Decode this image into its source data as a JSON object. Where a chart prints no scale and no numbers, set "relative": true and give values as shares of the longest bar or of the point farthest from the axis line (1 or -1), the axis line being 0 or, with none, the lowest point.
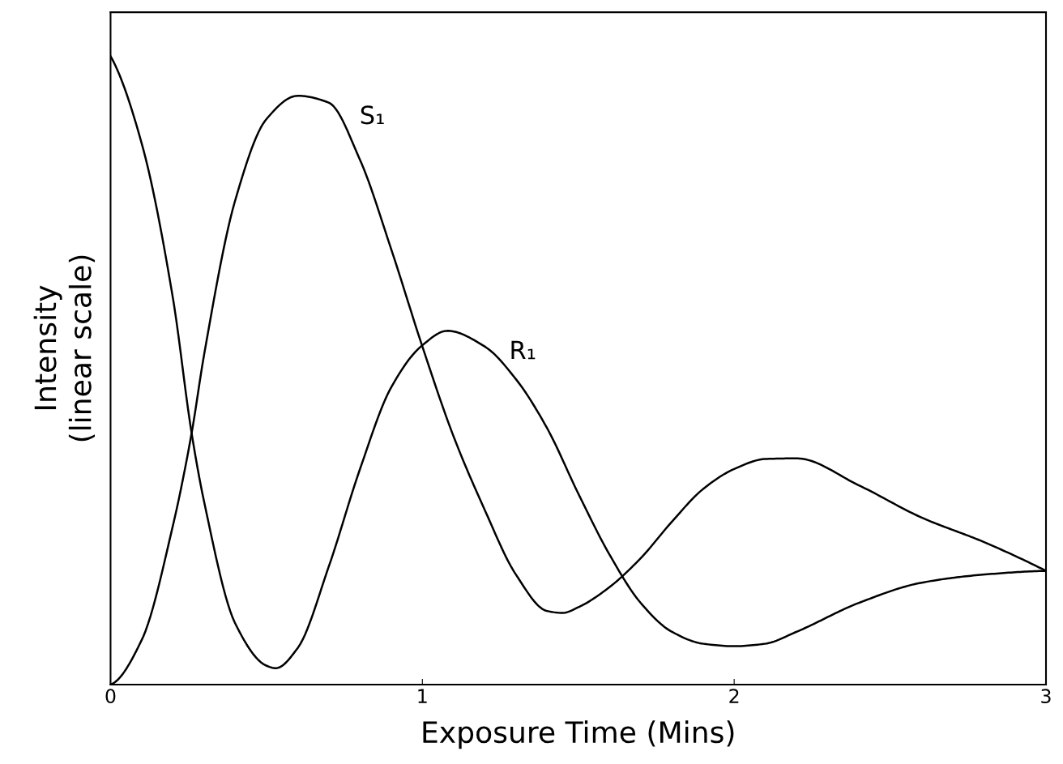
{
  "chart_data": {
    "type": "line",
    "relative": true,
    "xlabel": "Exposure Time (Mins)",
    "ylabel": "Intensity\n(linear scale)",
    "xlim": [
      0,
      3
    ],
    "xticks": [
      0,
      1,
      2,
      3
    ],
    "grid": false,
    "legend": false,
    "marker": "none",
    "line_style": "solid",
    "series": [
      {
        "name": "S₁",
        "color": "#000000",
        "x": [
          0,
          0.1,
          0.2,
          0.26,
          0.3,
          0.4,
          0.5,
          0.6,
          0.7,
          0.8,
          0.9,
          1.0,
          1.1,
          1.2,
          1.3,
          1.4,
          1.45,
          1.5,
          1.6,
          1.7,
          1.8,
          1.9,
          2.0,
          2.1,
          2.2,
          2.4,
          2.6,
          2.8,
          3.0
        ],
        "values": [
          0,
          0.071,
          0.253,
          0.4,
          0.525,
          0.771,
          0.9,
          0.937,
          0.926,
          0.835,
          0.693,
          0.538,
          0.395,
          0.278,
          0.175,
          0.117,
          0.114,
          0.123,
          0.155,
          0.201,
          0.259,
          0.311,
          0.343,
          0.359,
          0.36,
          0.317,
          0.266,
          0.227,
          0.181
        ]
      },
      {
        "name": "R₁",
        "color": "#000000",
        "x": [
          0,
          0.1,
          0.2,
          0.26,
          0.3,
          0.4,
          0.5,
          0.53,
          0.6,
          0.7,
          0.8,
          0.9,
          1.0,
          1.08,
          1.2,
          1.3,
          1.4,
          1.5,
          1.6,
          1.7,
          1.8,
          1.9,
          2.0,
          2.1,
          2.2,
          2.4,
          2.6,
          2.8,
          3.0
        ],
        "values": [
          1.0,
          0.861,
          0.615,
          0.4,
          0.291,
          0.097,
          0.03,
          0.026,
          0.058,
          0.188,
          0.343,
          0.473,
          0.54,
          0.563,
          0.538,
          0.486,
          0.408,
          0.304,
          0.207,
          0.13,
          0.084,
          0.065,
          0.061,
          0.065,
          0.084,
          0.13,
          0.162,
          0.175,
          0.181
        ]
      }
    ]
  }
}
